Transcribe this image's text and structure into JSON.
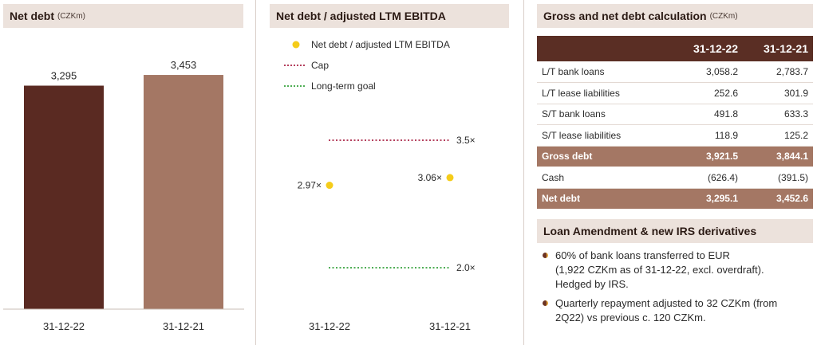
{
  "panels": {
    "net_debt": {
      "title": "Net debt",
      "unit": "(CZKm)"
    },
    "ratio": {
      "title": "Net debt / adjusted LTM EBITDA"
    },
    "calc": {
      "title": "Gross and net debt calculation",
      "unit": "(CZKm)"
    },
    "loan": {
      "title": "Loan Amendment & new IRS derivatives"
    }
  },
  "colors": {
    "dark_brown": "#5a2a22",
    "light_brown": "#a47764",
    "header_bg": "#ece2dc",
    "yellow": "#f5cc1a",
    "cap": "#b5405e",
    "goal": "#4fae55"
  },
  "chart_data": [
    {
      "type": "bar",
      "title": "Net debt",
      "categories": [
        "31-12-22",
        "31-12-21"
      ],
      "values": [
        3295,
        3453
      ],
      "labels": [
        "3,295",
        "3,453"
      ],
      "ylim": [
        0,
        3900
      ],
      "grid": false
    },
    {
      "type": "scatter",
      "title": "Net debt / adjusted LTM EBITDA",
      "categories": [
        "31-12-22",
        "31-12-21"
      ],
      "series": [
        {
          "name": "Net debt / adjusted LTM EBITDA",
          "values": [
            2.97,
            3.06
          ],
          "labels": [
            "2.97×",
            "3.06×"
          ]
        }
      ],
      "reference_lines": [
        {
          "name": "Cap",
          "value": 3.5,
          "label": "3.5×"
        },
        {
          "name": "Long-term goal",
          "value": 2.0,
          "label": "2.0×"
        }
      ],
      "ylim": [
        1.6,
        3.8
      ],
      "legend": "top-left",
      "grid": false
    }
  ],
  "table": {
    "columns": [
      "31-12-22",
      "31-12-21"
    ],
    "rows": [
      {
        "label": "L/T bank loans",
        "v1": "3,058.2",
        "v2": "2,783.7",
        "highlight": false
      },
      {
        "label": "L/T lease liabilities",
        "v1": "252.6",
        "v2": "301.9",
        "highlight": false
      },
      {
        "label": "S/T bank loans",
        "v1": "491.8",
        "v2": "633.3",
        "highlight": false
      },
      {
        "label": "S/T lease liabilities",
        "v1": "118.9",
        "v2": "125.2",
        "highlight": false
      },
      {
        "label": "Gross debt",
        "v1": "3,921.5",
        "v2": "3,844.1",
        "highlight": true
      },
      {
        "label": "Cash",
        "v1": "(626.4)",
        "v2": "(391.5)",
        "highlight": false
      },
      {
        "label": "Net debt",
        "v1": "3,295.1",
        "v2": "3,452.6",
        "highlight": true
      }
    ]
  },
  "bullets": [
    {
      "lines": [
        "60% of bank loans transferred to EUR",
        "(1,922 CZKm as of 31-12-22, excl. overdraft).",
        "Hedged by IRS."
      ]
    },
    {
      "lines": [
        "Quarterly repayment adjusted to 32 CZKm (from",
        "2Q22) vs previous c. 120 CZKm."
      ]
    }
  ]
}
